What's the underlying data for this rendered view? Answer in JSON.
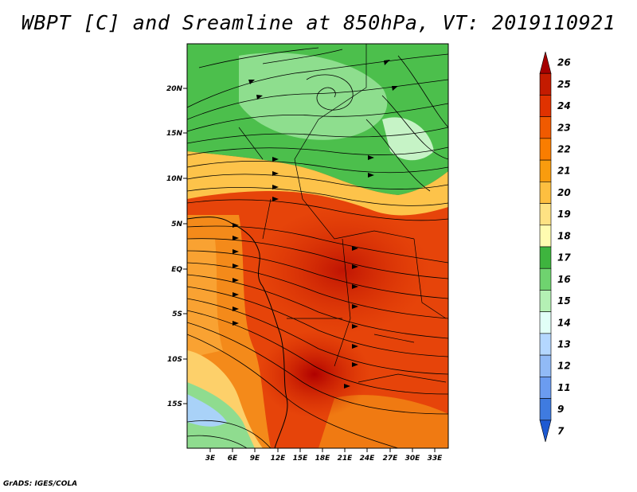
{
  "title": "WBPT [C] and Sreamline at 850hPa, VT: 2019110921",
  "footer": "GrADS: IGES/COLA",
  "map": {
    "lat_labels": [
      "20N",
      "15N",
      "10N",
      "5N",
      "EQ",
      "5S",
      "10S",
      "15S"
    ],
    "lon_labels": [
      "3E",
      "6E",
      "9E",
      "12E",
      "15E",
      "18E",
      "21E",
      "24E",
      "27E",
      "30E",
      "33E"
    ]
  },
  "colorbar": {
    "levels": [
      "26",
      "25",
      "24",
      "23",
      "22",
      "21",
      "20",
      "19",
      "18",
      "17",
      "16",
      "15",
      "14",
      "13",
      "12",
      "11",
      "9",
      "7"
    ],
    "colors": [
      "#a50000",
      "#c41b00",
      "#e03200",
      "#f05a00",
      "#fa7d00",
      "#f99c0e",
      "#fdbf40",
      "#fee283",
      "#fffcb0",
      "#3eb43e",
      "#6fd36f",
      "#b4f0b4",
      "#e1fff7",
      "#b4d7ff",
      "#91baf6",
      "#6b9cf0",
      "#3f7be0",
      "#1e5ad2"
    ]
  }
}
